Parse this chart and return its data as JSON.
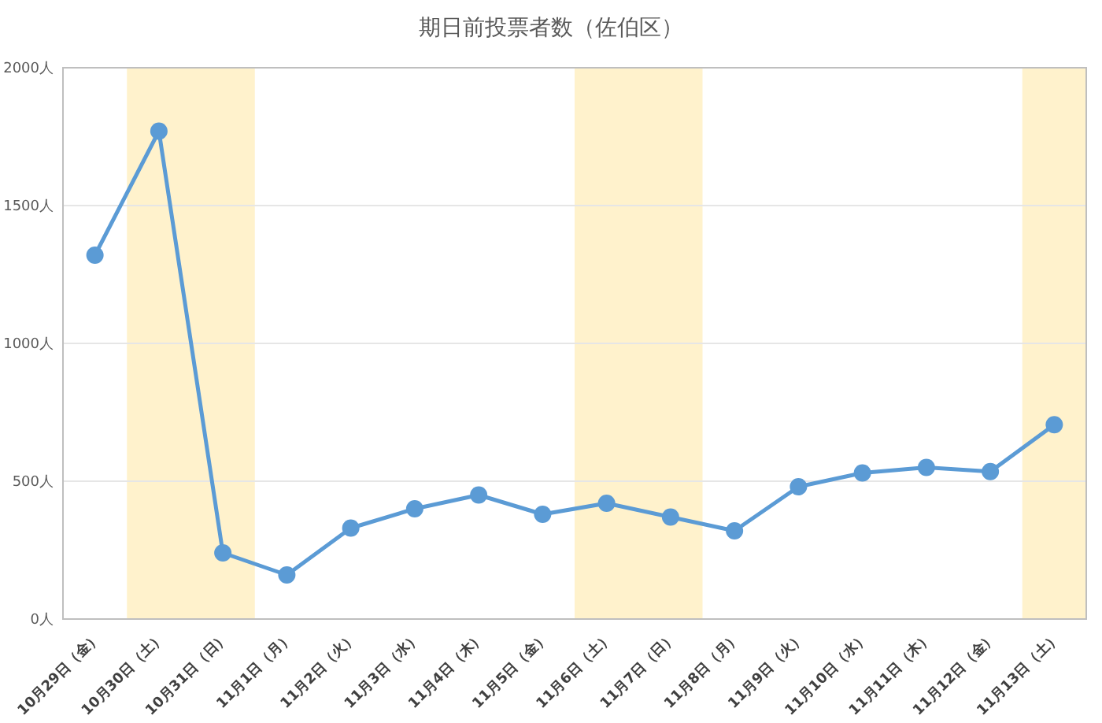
{
  "chart_data": {
    "type": "line",
    "title": "期日前投票者数（佐伯区）",
    "categories": [
      "10月29日（金）",
      "10月30日（土）",
      "10月31日（日）",
      "11月1日（月）",
      "11月2日（火）",
      "11月3日（水）",
      "11月4日（木）",
      "11月5日（金）",
      "11月6日（土）",
      "11月7日（日）",
      "11月8日（月）",
      "11月9日（火）",
      "11月10日（水）",
      "11月11日（木）",
      "11月12日（金）",
      "11月13日（土）"
    ],
    "series": [
      {
        "color": "#5b9bd5",
        "values": [
          1320,
          1770,
          240,
          160,
          330,
          400,
          450,
          380,
          420,
          370,
          320,
          480,
          530,
          550,
          535,
          705
        ]
      }
    ],
    "ylim": [
      0,
      2000
    ],
    "yticks": [
      {
        "value": 0,
        "label": "0人"
      },
      {
        "value": 500,
        "label": "500人"
      },
      {
        "value": 1000,
        "label": "1000人"
      },
      {
        "value": 1500,
        "label": "1500人"
      },
      {
        "value": 2000,
        "label": "2000人"
      }
    ],
    "bands": [
      {
        "axis": "x",
        "from": "10月30日（土）",
        "to": "10月31日（日）",
        "color": "#fff2cc"
      },
      {
        "axis": "x",
        "from": "11月6日（土）",
        "to": "11月7日（日）",
        "color": "#fff2cc"
      },
      {
        "axis": "x",
        "from": "11月13日（土）",
        "to": "11月13日（土）",
        "color": "#fff2cc"
      }
    ],
    "grid": "y",
    "marker": "circle",
    "line_style": "solid"
  }
}
